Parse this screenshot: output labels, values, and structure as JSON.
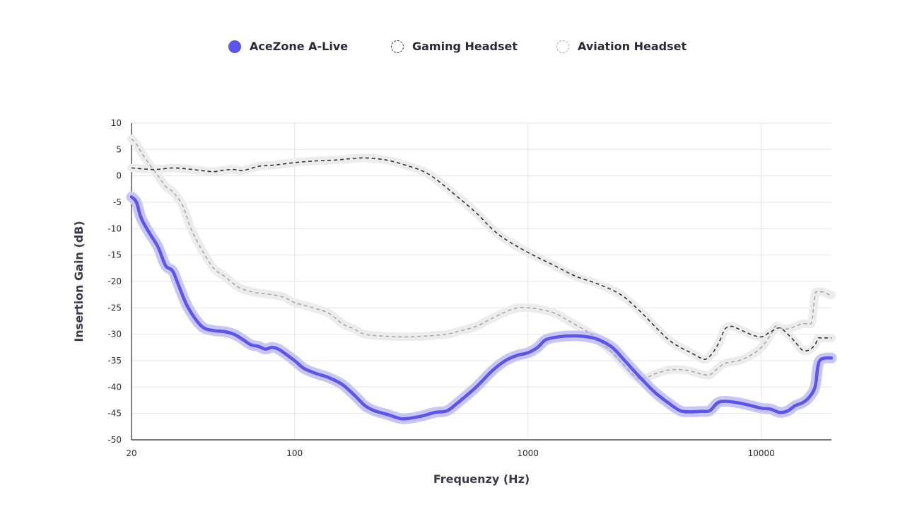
{
  "chart_data": {
    "type": "line",
    "xscale": "log",
    "xlim": [
      20,
      20000
    ],
    "ylim": [
      -50,
      10
    ],
    "xlabel": "Frequenzy (Hz)",
    "ylabel": "Insertion Gain (dB)",
    "xticks": [
      20,
      100,
      1000,
      10000
    ],
    "xtick_labels": [
      "20",
      "100",
      "1000",
      "10000"
    ],
    "yticks": [
      10,
      5,
      0,
      -5,
      -10,
      -15,
      -20,
      -25,
      -30,
      -35,
      -40,
      -45,
      -50
    ],
    "ytick_labels": [
      "10",
      "5",
      "0",
      "-5",
      "-10",
      "-15",
      "-20",
      "-25",
      "-30",
      "-35",
      "-40",
      "-45",
      "-50"
    ],
    "grid": true,
    "legend_position": "top-center",
    "series": [
      {
        "name": "AceZone A-Live",
        "style": "solid",
        "color": "#5b55ee",
        "halo": "#c7c6f6",
        "points": [
          [
            20,
            -4
          ],
          [
            21,
            -5
          ],
          [
            22,
            -8
          ],
          [
            24,
            -11
          ],
          [
            26,
            -13.5
          ],
          [
            28,
            -17
          ],
          [
            30,
            -18
          ],
          [
            32,
            -21
          ],
          [
            35,
            -25
          ],
          [
            40,
            -28.5
          ],
          [
            45,
            -29.3
          ],
          [
            50,
            -29.5
          ],
          [
            55,
            -30
          ],
          [
            60,
            -31
          ],
          [
            65,
            -32
          ],
          [
            70,
            -32.3
          ],
          [
            75,
            -32.8
          ],
          [
            80,
            -32.5
          ],
          [
            85,
            -32.8
          ],
          [
            90,
            -33.5
          ],
          [
            100,
            -35
          ],
          [
            110,
            -36.5
          ],
          [
            125,
            -37.5
          ],
          [
            140,
            -38.2
          ],
          [
            160,
            -39.5
          ],
          [
            180,
            -41.5
          ],
          [
            200,
            -43.5
          ],
          [
            220,
            -44.5
          ],
          [
            250,
            -45.2
          ],
          [
            280,
            -45.9
          ],
          [
            300,
            -46
          ],
          [
            350,
            -45.5
          ],
          [
            400,
            -44.8
          ],
          [
            450,
            -44.5
          ],
          [
            500,
            -43
          ],
          [
            600,
            -40
          ],
          [
            700,
            -37
          ],
          [
            800,
            -35
          ],
          [
            900,
            -34
          ],
          [
            1000,
            -33.5
          ],
          [
            1100,
            -32.5
          ],
          [
            1200,
            -31
          ],
          [
            1400,
            -30.4
          ],
          [
            1600,
            -30.3
          ],
          [
            1800,
            -30.5
          ],
          [
            2000,
            -31
          ],
          [
            2300,
            -32.5
          ],
          [
            2600,
            -35
          ],
          [
            3000,
            -38
          ],
          [
            3500,
            -41
          ],
          [
            4000,
            -43
          ],
          [
            4500,
            -44.5
          ],
          [
            5000,
            -44.7
          ],
          [
            5500,
            -44.6
          ],
          [
            6000,
            -44.5
          ],
          [
            6500,
            -43
          ],
          [
            7000,
            -42.7
          ],
          [
            8000,
            -43
          ],
          [
            9000,
            -43.5
          ],
          [
            10000,
            -44
          ],
          [
            11000,
            -44.2
          ],
          [
            12000,
            -44.8
          ],
          [
            13000,
            -44.5
          ],
          [
            14000,
            -43.5
          ],
          [
            15000,
            -43
          ],
          [
            16000,
            -42
          ],
          [
            17000,
            -40
          ],
          [
            17500,
            -36
          ],
          [
            18000,
            -34.8
          ],
          [
            19000,
            -34.5
          ],
          [
            20000,
            -34.5
          ]
        ]
      },
      {
        "name": "Gaming Headset",
        "style": "dashed",
        "color": "#2f3340",
        "halo": "#ececec",
        "points": [
          [
            20,
            1.5
          ],
          [
            25,
            1.2
          ],
          [
            30,
            1.5
          ],
          [
            35,
            1.3
          ],
          [
            40,
            1
          ],
          [
            45,
            0.8
          ],
          [
            50,
            1.1
          ],
          [
            55,
            1.2
          ],
          [
            60,
            1
          ],
          [
            70,
            1.8
          ],
          [
            80,
            2
          ],
          [
            100,
            2.5
          ],
          [
            120,
            2.8
          ],
          [
            150,
            3
          ],
          [
            180,
            3.3
          ],
          [
            200,
            3.4
          ],
          [
            230,
            3.2
          ],
          [
            260,
            2.8
          ],
          [
            300,
            2
          ],
          [
            350,
            1
          ],
          [
            400,
            -0.5
          ],
          [
            500,
            -4
          ],
          [
            600,
            -7
          ],
          [
            700,
            -10
          ],
          [
            800,
            -12
          ],
          [
            1000,
            -14.5
          ],
          [
            1300,
            -17
          ],
          [
            1600,
            -19
          ],
          [
            2000,
            -20.5
          ],
          [
            2500,
            -22.5
          ],
          [
            3000,
            -25.5
          ],
          [
            3500,
            -28.5
          ],
          [
            4000,
            -31
          ],
          [
            4500,
            -32.5
          ],
          [
            5000,
            -33.5
          ],
          [
            5500,
            -34.5
          ],
          [
            5800,
            -34.7
          ],
          [
            6200,
            -33.5
          ],
          [
            6600,
            -31.5
          ],
          [
            7000,
            -29
          ],
          [
            7500,
            -28.5
          ],
          [
            8000,
            -29
          ],
          [
            9000,
            -30
          ],
          [
            10000,
            -30.5
          ],
          [
            11000,
            -29.5
          ],
          [
            12000,
            -28.8
          ],
          [
            13000,
            -30
          ],
          [
            14000,
            -31.5
          ],
          [
            15000,
            -33
          ],
          [
            16000,
            -33
          ],
          [
            17000,
            -32
          ],
          [
            17500,
            -30.8
          ],
          [
            18000,
            -30.7
          ],
          [
            20000,
            -30.7
          ]
        ]
      },
      {
        "name": "Aviation Headset",
        "style": "dashed",
        "color": "#a8a8a8",
        "halo": "#ececec",
        "points": [
          [
            20,
            7
          ],
          [
            21,
            6
          ],
          [
            22,
            4.5
          ],
          [
            24,
            2
          ],
          [
            26,
            0
          ],
          [
            28,
            -2
          ],
          [
            30,
            -3
          ],
          [
            33,
            -5.5
          ],
          [
            36,
            -10
          ],
          [
            40,
            -14
          ],
          [
            45,
            -17.5
          ],
          [
            50,
            -19
          ],
          [
            55,
            -20.5
          ],
          [
            60,
            -21.5
          ],
          [
            70,
            -22.2
          ],
          [
            80,
            -22.5
          ],
          [
            90,
            -23
          ],
          [
            100,
            -24
          ],
          [
            120,
            -25
          ],
          [
            140,
            -26
          ],
          [
            160,
            -28
          ],
          [
            180,
            -29
          ],
          [
            200,
            -30
          ],
          [
            250,
            -30.4
          ],
          [
            300,
            -30.5
          ],
          [
            350,
            -30.4
          ],
          [
            400,
            -30.2
          ],
          [
            450,
            -30
          ],
          [
            500,
            -29.5
          ],
          [
            600,
            -28.5
          ],
          [
            700,
            -27
          ],
          [
            800,
            -25.8
          ],
          [
            900,
            -25
          ],
          [
            1000,
            -25
          ],
          [
            1100,
            -25.2
          ],
          [
            1300,
            -26
          ],
          [
            1500,
            -27.5
          ],
          [
            1800,
            -29.5
          ],
          [
            2000,
            -31
          ],
          [
            2300,
            -33.5
          ],
          [
            2600,
            -36
          ],
          [
            3000,
            -38.5
          ],
          [
            3500,
            -37.5
          ],
          [
            4000,
            -36.8
          ],
          [
            4500,
            -36.7
          ],
          [
            5000,
            -37
          ],
          [
            5500,
            -37.5
          ],
          [
            6000,
            -37.7
          ],
          [
            6500,
            -36.5
          ],
          [
            7000,
            -35.5
          ],
          [
            8000,
            -35
          ],
          [
            9000,
            -34
          ],
          [
            10000,
            -32.5
          ],
          [
            11000,
            -30
          ],
          [
            11500,
            -28.5
          ],
          [
            12000,
            -28.8
          ],
          [
            13000,
            -29
          ],
          [
            14000,
            -28.5
          ],
          [
            15000,
            -28
          ],
          [
            16000,
            -28
          ],
          [
            16500,
            -27.5
          ],
          [
            17000,
            -22.5
          ],
          [
            17500,
            -22
          ],
          [
            18500,
            -22
          ],
          [
            19500,
            -22.5
          ],
          [
            20000,
            -22.6
          ]
        ]
      }
    ]
  }
}
